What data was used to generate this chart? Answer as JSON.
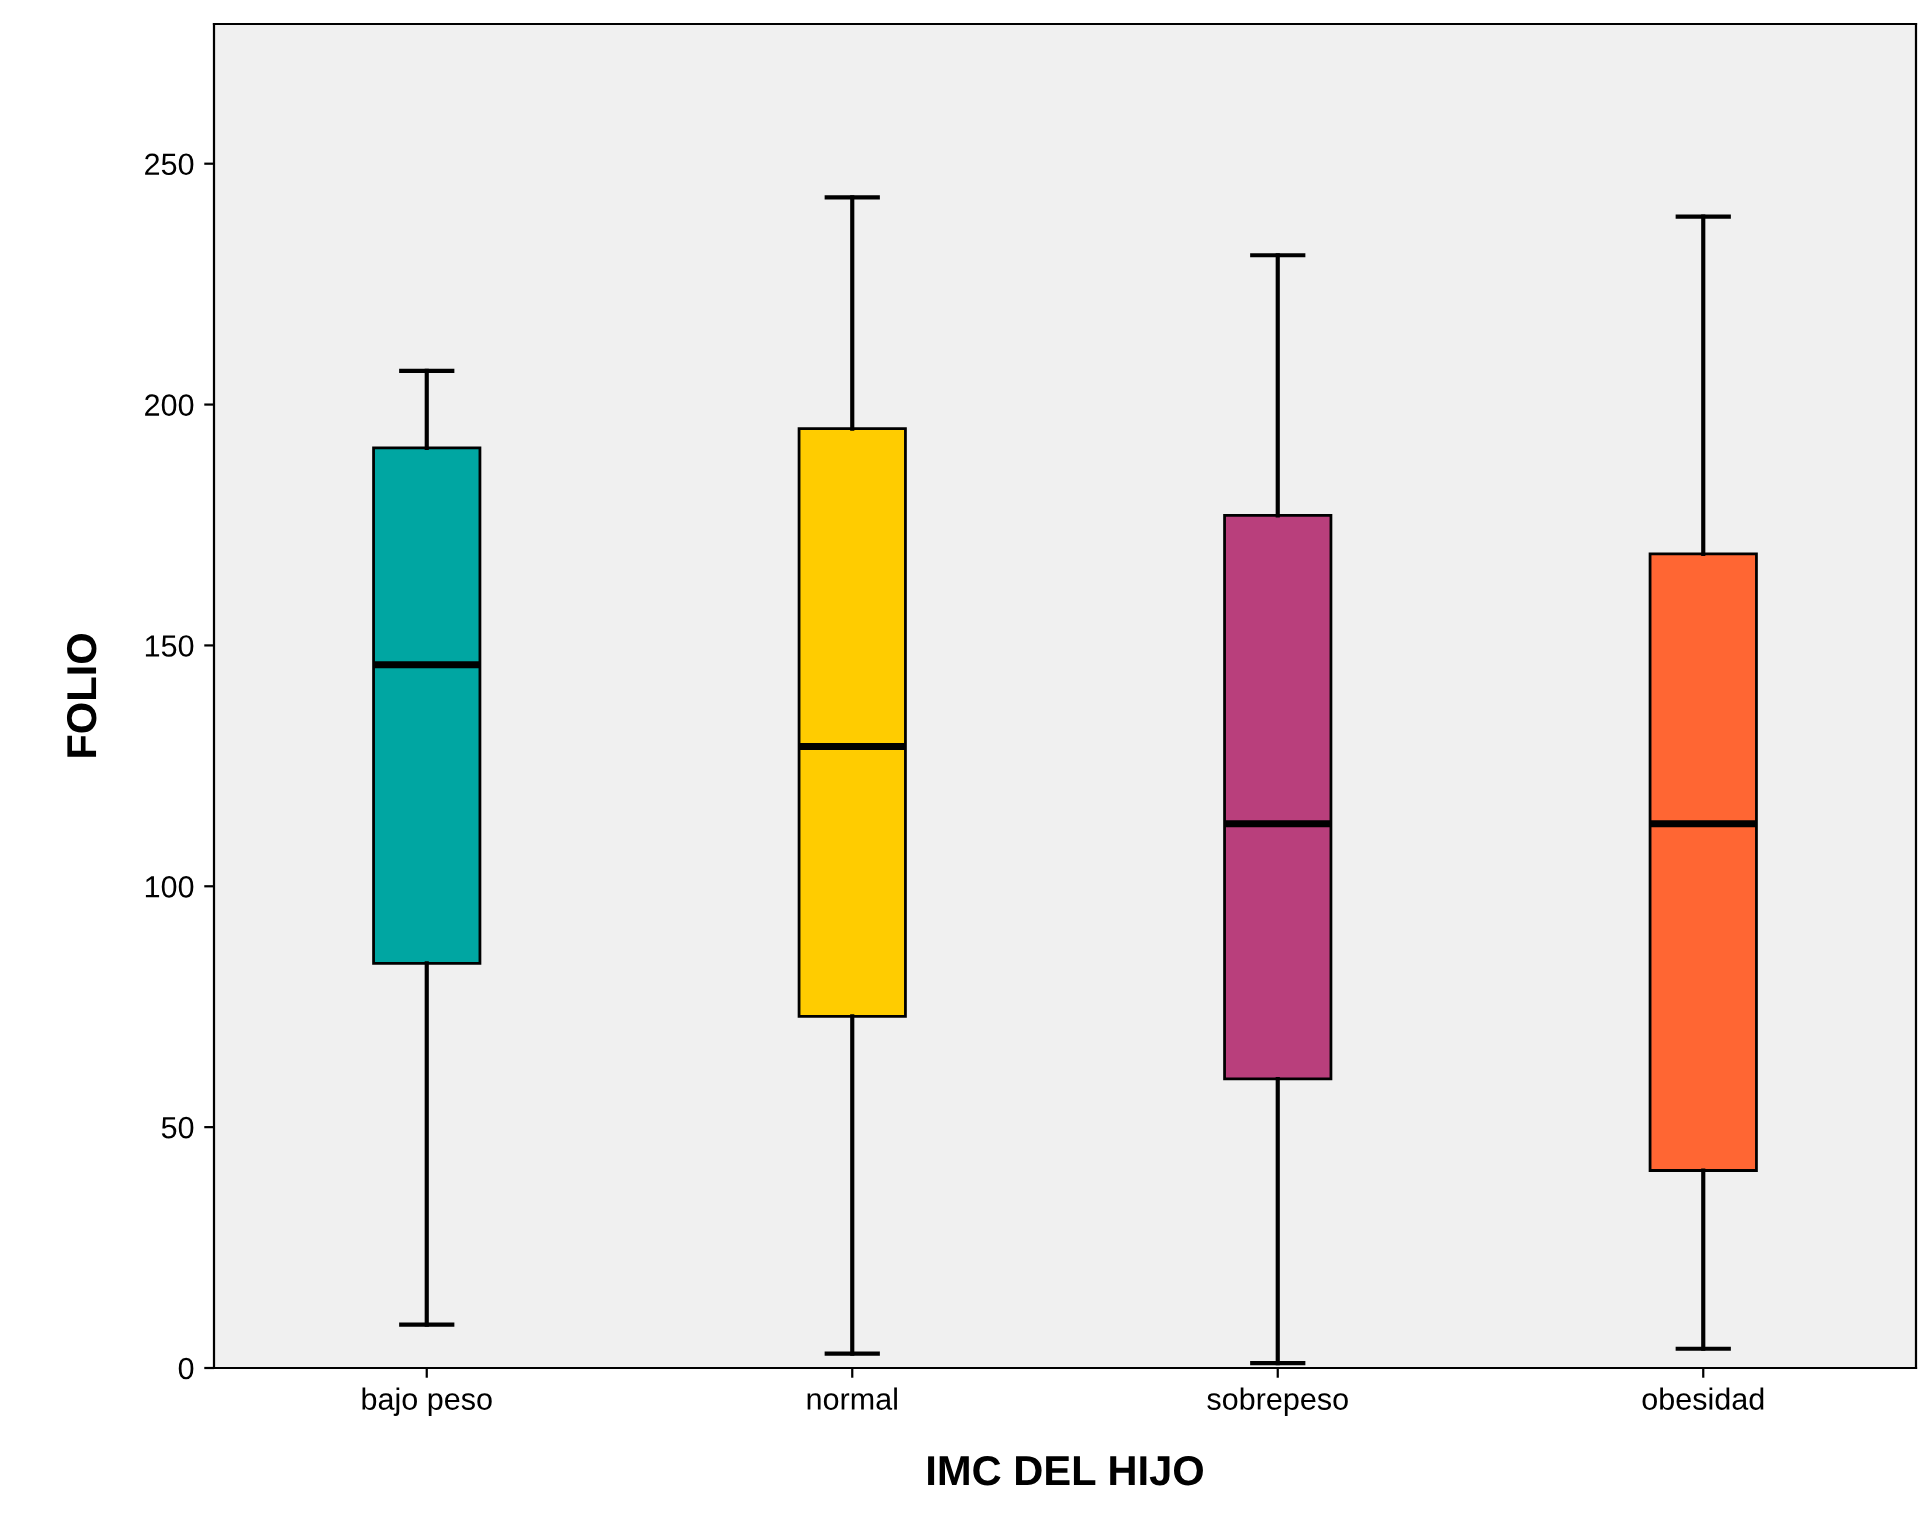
{
  "chart_data": {
    "type": "box",
    "xlabel": "IMC DEL HIJO",
    "ylabel": "FOLIO",
    "categories": [
      "bajo peso",
      "normal",
      "sobrepeso",
      "obesidad"
    ],
    "colors": [
      "#00a6a2",
      "#ffcc00",
      "#b93f7c",
      "#ff6633"
    ],
    "boxes": [
      {
        "low": 9,
        "q1": 84,
        "median": 146,
        "q3": 191,
        "high": 207
      },
      {
        "low": 3,
        "q1": 73,
        "median": 129,
        "q3": 195,
        "high": 243
      },
      {
        "low": 1,
        "q1": 60,
        "median": 113,
        "q3": 177,
        "high": 231
      },
      {
        "low": 4,
        "q1": 41,
        "median": 113,
        "q3": 169,
        "high": 239
      }
    ],
    "ylim": [
      0,
      279
    ],
    "yticks": [
      0,
      50,
      100,
      150,
      200,
      250
    ],
    "grid": false
  }
}
